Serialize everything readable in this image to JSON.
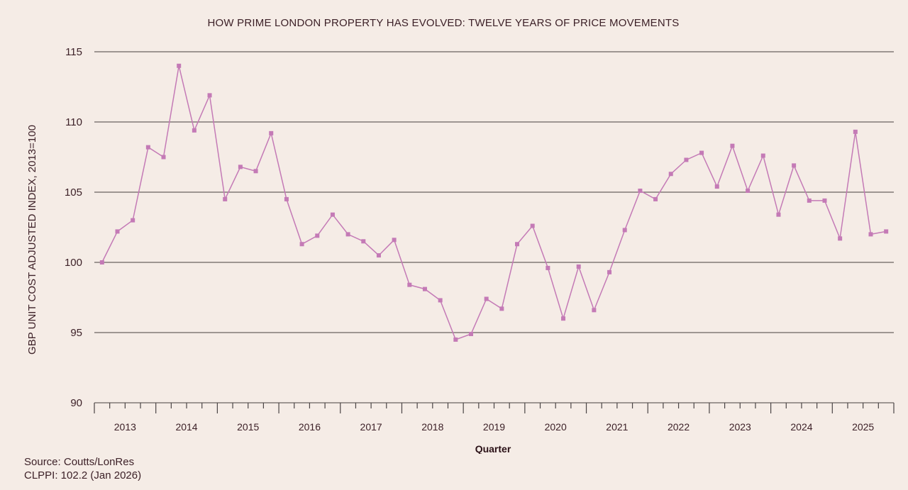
{
  "chart_data": {
    "type": "line",
    "title": "HOW PRIME LONDON PROPERTY HAS EVOLVED: TWELVE YEARS OF PRICE MOVEMENTS",
    "xlabel": "Quarter",
    "ylabel": "GBP UNIT COST ADJUSTED INDEX, 2013=100",
    "ylim": [
      90,
      115
    ],
    "yticks": [
      90,
      95,
      100,
      105,
      110,
      115
    ],
    "grid": true,
    "legend": "none",
    "year_labels": [
      "2013",
      "2014",
      "2015",
      "2016",
      "2017",
      "2018",
      "2019",
      "2020",
      "2021",
      "2022",
      "2023",
      "2024",
      "2025"
    ],
    "quarters_per_year": 4,
    "series": [
      {
        "name": "CLPPI",
        "color": "#c47ab6",
        "marker": "square",
        "values": [
          100.0,
          102.2,
          103.0,
          108.2,
          107.5,
          114.0,
          109.4,
          111.9,
          104.5,
          106.8,
          106.5,
          109.2,
          104.5,
          101.3,
          101.9,
          103.4,
          102.0,
          101.5,
          100.5,
          101.6,
          98.4,
          98.1,
          97.3,
          94.5,
          94.9,
          97.4,
          96.7,
          101.3,
          102.6,
          99.6,
          96.0,
          99.7,
          96.6,
          99.3,
          102.3,
          105.1,
          104.5,
          106.3,
          107.3,
          107.8,
          105.4,
          108.3,
          105.1,
          107.6,
          103.4,
          106.9,
          104.4,
          104.4,
          101.7,
          109.3,
          102.0,
          102.2
        ]
      }
    ]
  },
  "footer": {
    "source": "Source: Coutts/LonRes",
    "current": "CLPPI: 102.2 (Jan 2026)"
  }
}
